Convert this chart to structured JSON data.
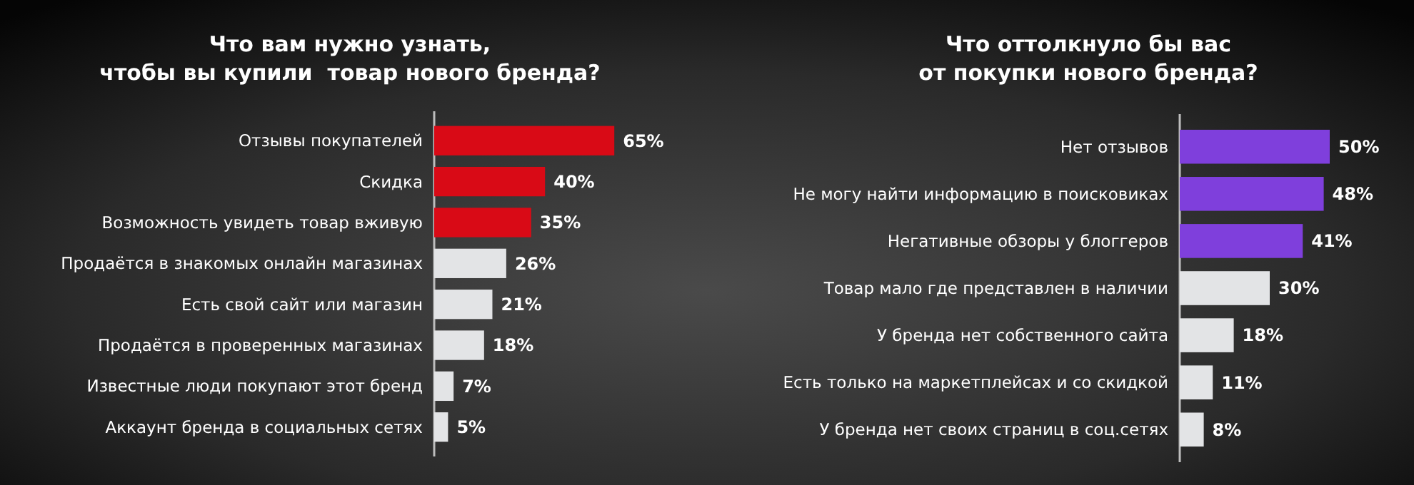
{
  "chart_data": [
    {
      "type": "bar",
      "orientation": "horizontal",
      "title": "Что вам нужно узнать,\nчтобы вы купили  товар нового бренда?",
      "categories": [
        "Отзывы покупателей",
        "Скидка",
        "Возможность увидеть товар вживую",
        "Продаётся в знакомых онлайн магазинах",
        "Есть свой сайт или магазин",
        "Продаётся в проверенных магазинах",
        "Известные люди покупают этот бренд",
        "Аккаунт бренда в социальных сетях"
      ],
      "values": [
        65,
        40,
        35,
        26,
        21,
        18,
        7,
        5
      ],
      "value_labels": [
        "65%",
        "40%",
        "35%",
        "26%",
        "21%",
        "18%",
        "7%",
        "5%"
      ],
      "colors": [
        "#d90a16",
        "#d90a16",
        "#d90a16",
        "#e3e4e6",
        "#e3e4e6",
        "#e3e4e6",
        "#e3e4e6",
        "#e3e4e6"
      ]
    },
    {
      "type": "bar",
      "orientation": "horizontal",
      "title": "Что оттолкнуло бы вас\nот покупки нового бренда?",
      "categories": [
        "Нет отзывов",
        "Не могу найти информацию в поисковиках",
        "Негативные обзоры у блоггеров",
        "Товар мало где представлен в наличии",
        "У бренда нет собственного сайта",
        "Есть только на маркетплейсах и со скидкой",
        "У бренда нет своих страниц в соц.сетях"
      ],
      "values": [
        50,
        48,
        41,
        30,
        18,
        11,
        8
      ],
      "value_labels": [
        "50%",
        "48%",
        "41%",
        "30%",
        "18%",
        "11%",
        "8%"
      ],
      "colors": [
        "#7f3fdc",
        "#7f3fdc",
        "#7f3fdc",
        "#e3e4e6",
        "#e3e4e6",
        "#e3e4e6",
        "#e3e4e6"
      ]
    }
  ]
}
